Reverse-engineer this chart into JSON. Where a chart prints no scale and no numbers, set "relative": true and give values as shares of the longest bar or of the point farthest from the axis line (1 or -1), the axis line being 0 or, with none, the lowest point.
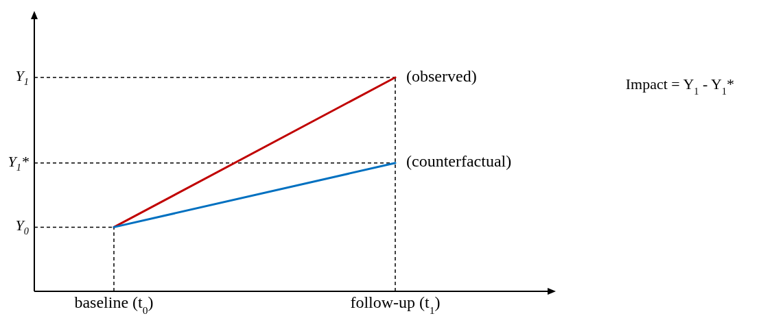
{
  "chart_data": {
    "type": "line",
    "relative": true,
    "categories": [
      "baseline (t$_{0}$)",
      "follow-up (t$_{1}$)"
    ],
    "series": [
      {
        "name": "(observed)",
        "color": "#c00000",
        "values": [
          0.3,
          1
        ]
      },
      {
        "name": "(counterfactual)",
        "color": "#0070c0",
        "values": [
          0.3,
          0.6
        ]
      }
    ],
    "ref_lines": [
      {
        "axis": "y",
        "value": 1,
        "label": "Y$_{1}$",
        "line_style": "dashed",
        "color": "#000000"
      },
      {
        "axis": "y",
        "value": 0.6,
        "label": "Y$_{1}$*",
        "line_style": "dashed",
        "color": "#000000"
      },
      {
        "axis": "y",
        "value": 0.3,
        "label": "Y$_{0}$",
        "line_style": "dashed",
        "color": "#000000"
      },
      {
        "axis": "x",
        "value": "baseline (t$_{0}$)",
        "line_style": "dashed",
        "color": "#000000"
      },
      {
        "axis": "x",
        "value": "follow-up (t$_{1}$)",
        "line_style": "dashed",
        "color": "#000000"
      }
    ],
    "annotations": [
      "Impact = Y$_{1}$ - Y$_{1}$*"
    ]
  }
}
